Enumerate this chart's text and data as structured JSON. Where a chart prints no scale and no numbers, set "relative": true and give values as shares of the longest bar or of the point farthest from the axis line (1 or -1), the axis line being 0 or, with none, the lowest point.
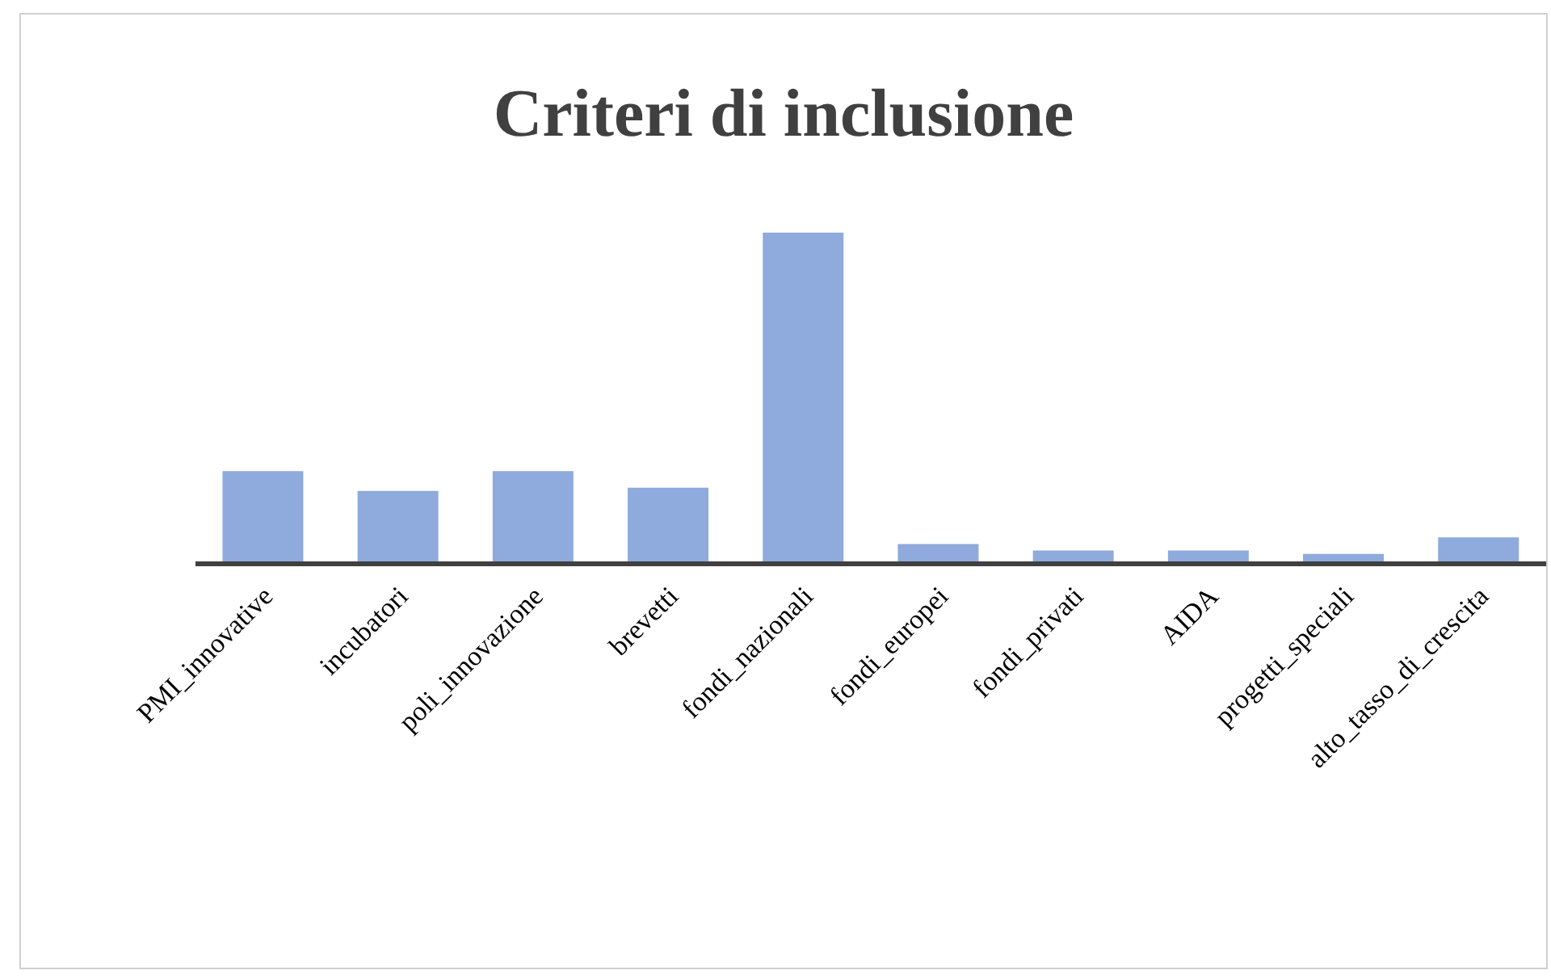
{
  "chart_data": {
    "type": "bar",
    "title": "Criteri di inclusione",
    "relative": true,
    "categories": [
      "PMI_innovative",
      "incubatori",
      "poli_innovazione",
      "brevetti",
      "fondi_nazionali",
      "fondi_europei",
      "fondi_privati",
      "AIDA",
      "progetti_speciali",
      "alto_tasso_di_crescita"
    ],
    "values": [
      0.28,
      0.22,
      0.28,
      0.23,
      1,
      0.06,
      0.04,
      0.04,
      0.03,
      0.08
    ],
    "color": "#8faadc",
    "grid": false,
    "legend": false
  }
}
